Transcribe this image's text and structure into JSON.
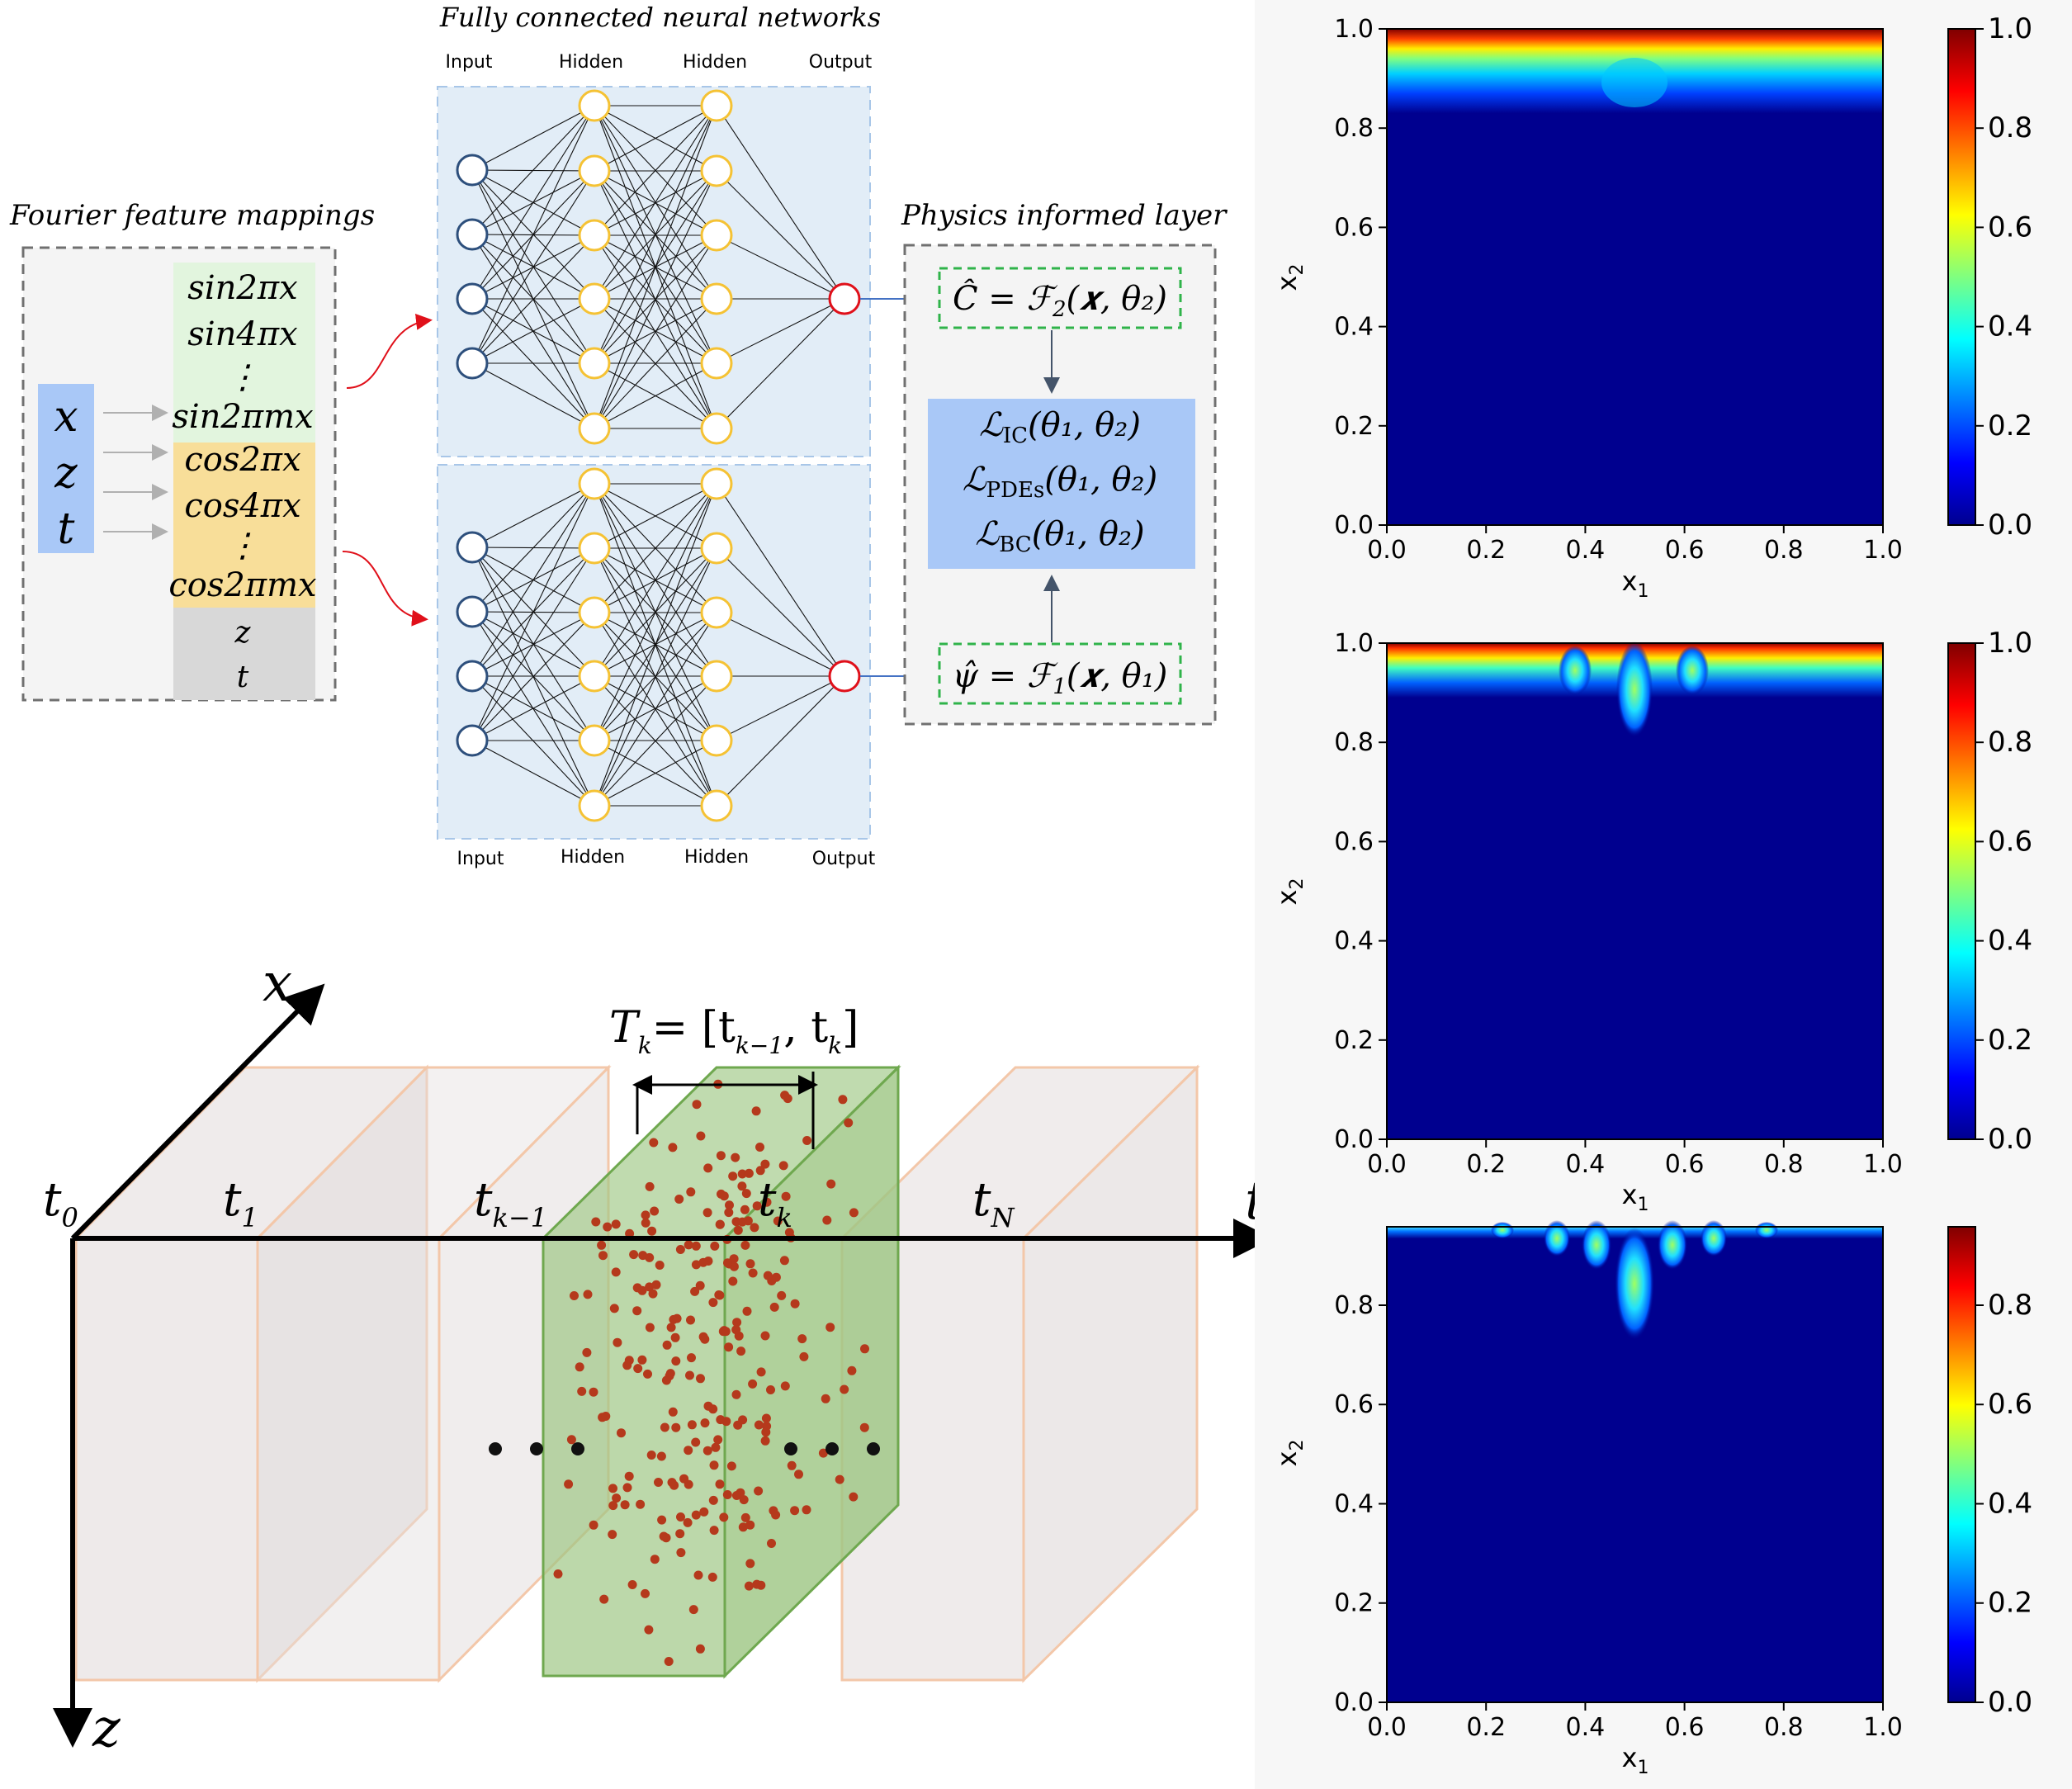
{
  "colors": {
    "ffm_panel": "#f4f4f4",
    "sin_block": "#e2f5de",
    "cos_block": "#f8de99",
    "zt_block": "#d8d8d8",
    "input_block": "#a9c8f7",
    "nn_panel": "#e2edf7",
    "loss_box": "#a9c8f7",
    "node_input": "#2d4f7c",
    "node_hidden": "#f5c234",
    "node_output": "#e0101a",
    "slab_fill": "#e4dede",
    "slab_edge": "#f3c7a9",
    "slab_active": "#9cc682",
    "point": "#b5391c",
    "heat_low": "#00008f",
    "heat_high": "#800000"
  },
  "ffm": {
    "title": "Fourier feature mappings",
    "inputs": [
      "x",
      "z",
      "t"
    ],
    "sin_terms": [
      "sin2πx",
      "sin4πx",
      "⋮",
      "sin2πmx"
    ],
    "cos_terms": [
      "cos2πx",
      "cos4πx",
      "⋮",
      "cos2πmx"
    ],
    "passthrough": [
      "z",
      "t"
    ]
  },
  "nn": {
    "title": "Fully connected neural networks",
    "layer_labels": [
      "Input",
      "Hidden",
      "Hidden",
      "Output"
    ]
  },
  "physics": {
    "title": "Physics informed layer",
    "c_hat": {
      "lhs": "Ĉ",
      "rhs": "ℱ",
      "sub": "2",
      "args": "(𝒙, θ₂)"
    },
    "psi_hat": {
      "lhs": "ψ̂",
      "rhs": "ℱ",
      "sub": "1",
      "args": "(𝒙, θ₁)"
    },
    "losses": [
      {
        "sym": "ℒ",
        "sub": "IC",
        "args": "(θ₁, θ₂)"
      },
      {
        "sym": "ℒ",
        "sub": "PDEs",
        "args": "(θ₁, θ₂)"
      },
      {
        "sym": "ℒ",
        "sub": "BC",
        "args": "(θ₁, θ₂)"
      }
    ]
  },
  "timeline": {
    "axis_x": "x",
    "axis_z": "z",
    "axis_t": "t",
    "interval_lhs": "T",
    "interval_lhs_sub": "k",
    "interval_eq": "= [t",
    "interval_sub1": "k−1",
    "interval_mid": ",  t",
    "interval_sub2": "k",
    "interval_close": "]",
    "ticks": [
      {
        "base": "t",
        "sub": "0"
      },
      {
        "base": "t",
        "sub": "1"
      },
      {
        "base": "t",
        "sub": "k−1"
      },
      {
        "base": "t",
        "sub": "k"
      },
      {
        "base": "t",
        "sub": "N"
      }
    ],
    "ellipsis": "• • •"
  },
  "heatmaps": [
    {
      "xlabel": "x",
      "xlabel_sub": "1",
      "ylabel": "x",
      "ylabel_sub": "2",
      "xticks": [
        "0.0",
        "0.2",
        "0.4",
        "0.6",
        "0.8",
        "1.0"
      ],
      "yticks": [
        "0.0",
        "0.2",
        "0.4",
        "0.6",
        "0.8",
        "1.0"
      ],
      "cbar_ticks": [
        "0.0",
        "0.2",
        "0.4",
        "0.6",
        "0.8",
        "1.0"
      ]
    },
    {
      "xlabel": "x",
      "xlabel_sub": "1",
      "ylabel": "x",
      "ylabel_sub": "2",
      "xticks": [
        "0.0",
        "0.2",
        "0.4",
        "0.6",
        "0.8",
        "1.0"
      ],
      "yticks": [
        "0.0",
        "0.2",
        "0.4",
        "0.6",
        "0.8",
        "1.0"
      ],
      "cbar_ticks": [
        "0.0",
        "0.2",
        "0.4",
        "0.6",
        "0.8",
        "1.0"
      ]
    },
    {
      "xlabel": "x",
      "xlabel_sub": "1",
      "ylabel": "x",
      "ylabel_sub": "2",
      "xticks": [
        "0.0",
        "0.2",
        "0.4",
        "0.6",
        "0.8",
        "1.0"
      ],
      "yticks": [
        "0.0",
        "0.2",
        "0.4",
        "0.6",
        "0.8"
      ],
      "cbar_ticks": [
        "0.0",
        "0.2",
        "0.4",
        "0.6",
        "0.8"
      ]
    }
  ]
}
